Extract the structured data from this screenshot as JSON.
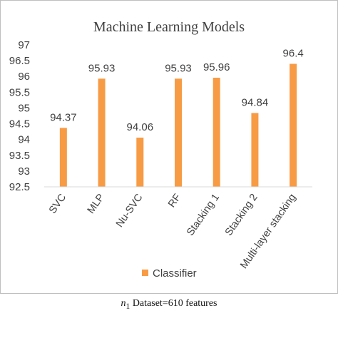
{
  "chart_data": {
    "type": "bar",
    "title": "Machine Learning Models",
    "categories": [
      "SVC",
      "MLP",
      "Nu-SVC",
      "RF",
      "Stacking 1",
      "Stacking 2",
      "Multi-layer stacking"
    ],
    "series": [
      {
        "name": "Classifier",
        "values": [
          94.37,
          95.93,
          94.06,
          95.93,
          95.96,
          94.84,
          96.4
        ]
      }
    ],
    "data_labels": [
      "94.37",
      "95.93",
      "94.06",
      "95.93",
      "95.96",
      "94.84",
      "96.4"
    ],
    "ylim": [
      92.5,
      97
    ],
    "yticks": [
      "92.5",
      "93",
      "93.5",
      "94",
      "94.5",
      "95",
      "95.5",
      "96",
      "96.5",
      "97"
    ],
    "grid": false,
    "legend_position": "bottom",
    "bar_color": "#f79b45"
  },
  "caption": {
    "n": "n",
    "sub": "1",
    "rest": " Dataset=610 features"
  }
}
